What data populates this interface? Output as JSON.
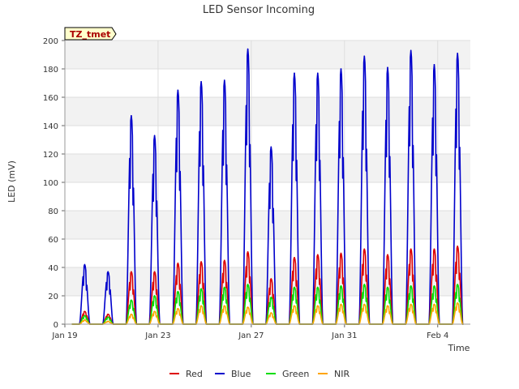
{
  "chart_data": {
    "type": "line",
    "title": "LED Sensor Incoming",
    "xlabel": "Time",
    "ylabel": "LED (mV)",
    "badge": "TZ_tmet",
    "xlim": [
      0,
      17.4
    ],
    "ylim": [
      0,
      200
    ],
    "yticks": [
      0,
      20,
      40,
      60,
      80,
      100,
      120,
      140,
      160,
      180,
      200
    ],
    "xticks": [
      {
        "value": 0,
        "label": "Jan 19"
      },
      {
        "value": 4,
        "label": "Jan 23"
      },
      {
        "value": 8,
        "label": "Jan 27"
      },
      {
        "value": 12,
        "label": "Jan 31"
      },
      {
        "value": 16,
        "label": "Feb 4"
      }
    ],
    "grid": true,
    "legend_position": "bottom",
    "day_peaks": [
      {
        "day": 0.85,
        "Red": 9,
        "Blue": 42,
        "Green": 6,
        "NIR": 3
      },
      {
        "day": 1.85,
        "Red": 7,
        "Blue": 37,
        "Green": 5,
        "NIR": 2
      },
      {
        "day": 2.85,
        "Red": 37,
        "Blue": 147,
        "Green": 17,
        "NIR": 7
      },
      {
        "day": 3.85,
        "Red": 37,
        "Blue": 133,
        "Green": 20,
        "NIR": 9
      },
      {
        "day": 4.85,
        "Red": 43,
        "Blue": 165,
        "Green": 23,
        "NIR": 11
      },
      {
        "day": 5.85,
        "Red": 44,
        "Blue": 171,
        "Green": 25,
        "NIR": 13
      },
      {
        "day": 6.85,
        "Red": 45,
        "Blue": 172,
        "Green": 26,
        "NIR": 13
      },
      {
        "day": 7.85,
        "Red": 51,
        "Blue": 194,
        "Green": 28,
        "NIR": 12
      },
      {
        "day": 8.85,
        "Red": 32,
        "Blue": 125,
        "Green": 19,
        "NIR": 8
      },
      {
        "day": 9.85,
        "Red": 47,
        "Blue": 177,
        "Green": 26,
        "NIR": 13
      },
      {
        "day": 10.85,
        "Red": 49,
        "Blue": 177,
        "Green": 26,
        "NIR": 13
      },
      {
        "day": 11.85,
        "Red": 50,
        "Blue": 180,
        "Green": 27,
        "NIR": 14
      },
      {
        "day": 12.85,
        "Red": 53,
        "Blue": 189,
        "Green": 28,
        "NIR": 14
      },
      {
        "day": 13.85,
        "Red": 49,
        "Blue": 181,
        "Green": 26,
        "NIR": 13
      },
      {
        "day": 14.85,
        "Red": 53,
        "Blue": 193,
        "Green": 27,
        "NIR": 14
      },
      {
        "day": 15.85,
        "Red": 53,
        "Blue": 183,
        "Green": 27,
        "NIR": 14
      },
      {
        "day": 16.85,
        "Red": 55,
        "Blue": 191,
        "Green": 28,
        "NIR": 15
      }
    ],
    "series": [
      {
        "name": "Red",
        "color": "#dd0000"
      },
      {
        "name": "Blue",
        "color": "#0000cc"
      },
      {
        "name": "Green",
        "color": "#00dd00"
      },
      {
        "name": "NIR",
        "color": "#ffa500"
      }
    ]
  }
}
